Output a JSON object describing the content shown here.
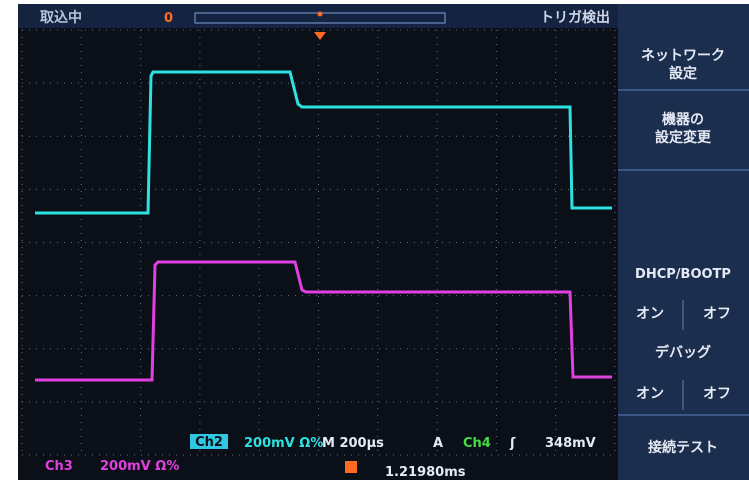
{
  "header": {
    "status": "取込中",
    "marker": "0",
    "trigger": "トリガ検出"
  },
  "menu": {
    "network": [
      "ネットワーク",
      "設定"
    ],
    "device": [
      "機器の",
      "設定変更"
    ],
    "dhcp": "DHCP/BOOTP",
    "dhcp_on": "オン",
    "dhcp_off": "オフ",
    "debug": "デバッグ",
    "debug_on": "オン",
    "debug_off": "オフ",
    "test": "接続テスト"
  },
  "status": {
    "ch2_badge": "Ch2",
    "ch2_scale": "200mV Ω%",
    "timebase": "M 200µs",
    "acq": "A",
    "trig_source": "Ch4",
    "slope": "ʃ",
    "trig_level": "348mV",
    "ch3": "Ch3",
    "ch3_scale": "200mV Ω%",
    "position": "1.21980ms"
  }
}
